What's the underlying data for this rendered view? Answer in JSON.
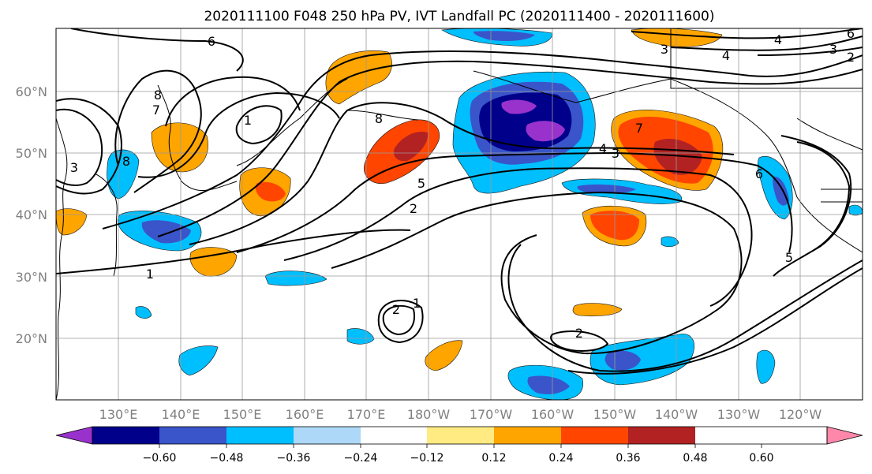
{
  "title": "2020111100 F048 250 hPa PV, IVT Landfall PC (2020111400 - 2020111600)",
  "map": {
    "lat_ticks": [
      "20°N",
      "30°N",
      "40°N",
      "50°N",
      "60°N"
    ],
    "lon_ticks": [
      "130°E",
      "140°E",
      "150°E",
      "160°E",
      "170°E",
      "180°W",
      "170°W",
      "160°W",
      "150°W",
      "140°W",
      "130°W",
      "120°W"
    ],
    "contour_labels": [
      "6",
      "8",
      "7",
      "3",
      "8",
      "1",
      "8",
      "5",
      "2",
      "1",
      "2",
      "1",
      "2",
      "7",
      "4",
      "3",
      "3",
      "4",
      "4",
      "3",
      "2",
      "6",
      "6",
      "5"
    ]
  },
  "colorbar": {
    "labels": [
      "−0.60",
      "−0.48",
      "−0.36",
      "−0.24",
      "−0.12",
      "0.12",
      "0.24",
      "0.36",
      "0.48",
      "0.60"
    ],
    "colors": [
      "#9932cc",
      "#00008b",
      "#3a55c9",
      "#00bfff",
      "#add8f7",
      "#ffffff",
      "#ffeb82",
      "#ffa500",
      "#ff4500",
      "#b22222",
      "#ff88aa"
    ]
  }
}
